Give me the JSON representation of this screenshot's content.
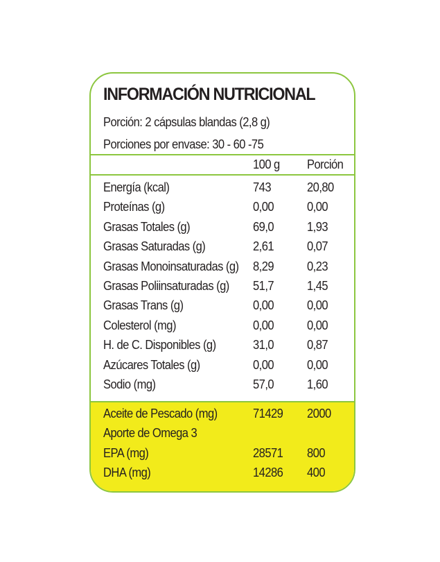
{
  "label": {
    "title": "INFORMACIÓN NUTRICIONAL",
    "portion": "Porción: 2 cápsulas blandas (2,8 g)",
    "servings": "Porciones por envase: 30 - 60 -75",
    "columns": {
      "per100": "100 g",
      "perPortion": "Porción"
    },
    "rows": [
      {
        "name": "Energía (kcal)",
        "per100": "743",
        "perPortion": "20,80"
      },
      {
        "name": "Proteínas (g)",
        "per100": "0,00",
        "perPortion": "0,00"
      },
      {
        "name": "Grasas Totales (g)",
        "per100": "69,0",
        "perPortion": "1,93"
      },
      {
        "name": "Grasas Saturadas (g)",
        "per100": "2,61",
        "perPortion": "0,07"
      },
      {
        "name": "Grasas Monoinsaturadas (g)",
        "per100": "8,29",
        "perPortion": "0,23"
      },
      {
        "name": "Grasas Poliinsaturadas (g)",
        "per100": "51,7",
        "perPortion": "1,45"
      },
      {
        "name": "Grasas Trans (g)",
        "per100": "0,00",
        "perPortion": "0,00"
      },
      {
        "name": "Colesterol (mg)",
        "per100": "0,00",
        "perPortion": "0,00"
      },
      {
        "name": "H. de C. Disponibles (g)",
        "per100": "31,0",
        "perPortion": "0,87"
      },
      {
        "name": "Azúcares Totales (g)",
        "per100": "0,00",
        "perPortion": "0,00"
      },
      {
        "name": "Sodio (mg)",
        "per100": "57,0",
        "perPortion": "1,60"
      }
    ],
    "highlightRows": [
      {
        "name": "Aceite de Pescado (mg)",
        "per100": "71429",
        "perPortion": "2000"
      },
      {
        "name": "Aporte de Omega 3",
        "per100": "",
        "perPortion": ""
      },
      {
        "name": "EPA (mg)",
        "per100": "28571",
        "perPortion": "800"
      },
      {
        "name": "DHA (mg)",
        "per100": "14286",
        "perPortion": "400"
      }
    ],
    "colors": {
      "border": "#8cc63f",
      "highlight": "#f2eb1b",
      "text": "#231f20"
    }
  }
}
